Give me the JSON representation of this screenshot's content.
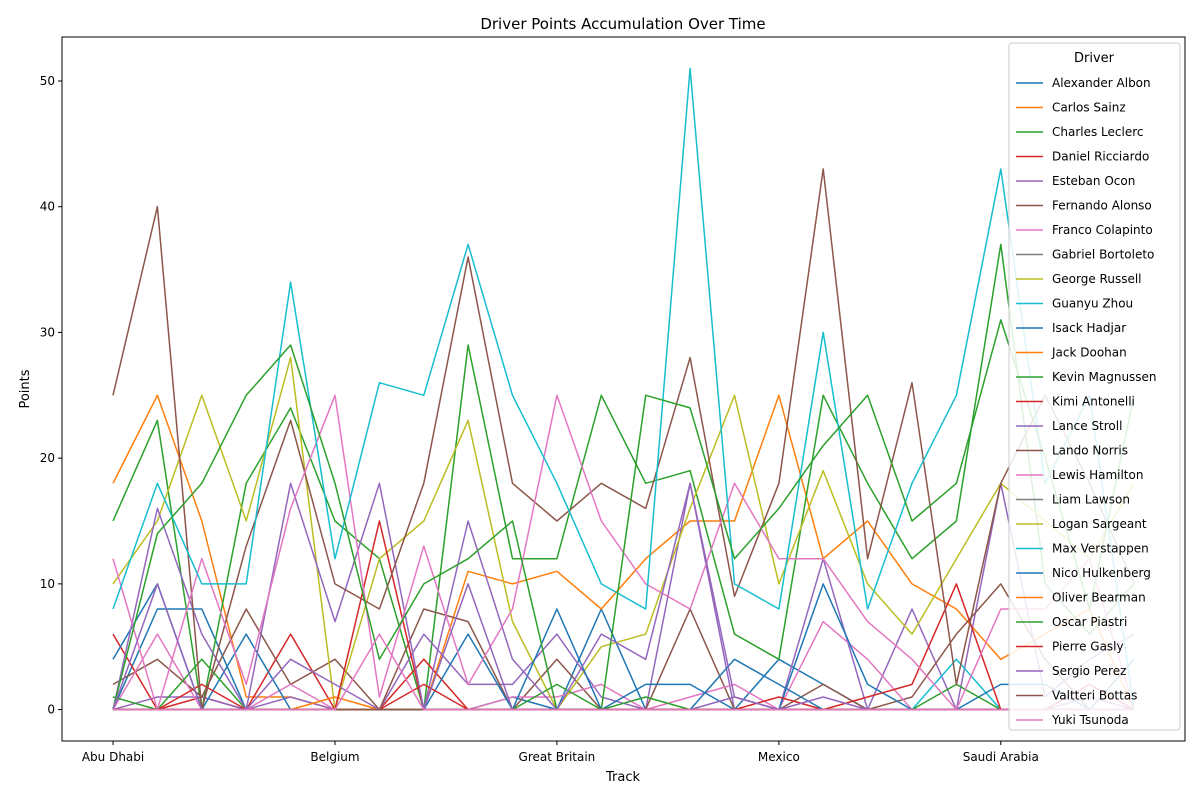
{
  "chart_data": {
    "type": "line",
    "title": "Driver Points Accumulation Over Time",
    "xlabel": "Track",
    "ylabel": "Points",
    "x_tick_labels": [
      "Abu Dhabi",
      "Belgium",
      "Great Britain",
      "Mexico",
      "Saudi Arabia"
    ],
    "x_tick_positions": [
      0,
      5,
      10,
      15,
      20
    ],
    "x_count": 24,
    "ylim": [
      -2.5,
      53.5
    ],
    "xlim": [
      -1.15,
      24.15
    ],
    "y_ticks": [
      0,
      10,
      20,
      30,
      40,
      50
    ],
    "grid": false,
    "legend": {
      "title": "Driver",
      "placement": "upper right"
    },
    "series": [
      {
        "name": "Alexander Albon",
        "color": "#1f77b4",
        "values": [
          0,
          8,
          8,
          0,
          0,
          0,
          0,
          0,
          0,
          1,
          0,
          8,
          0,
          0,
          0,
          4,
          2,
          0,
          0,
          0,
          0,
          0,
          0,
          0
        ]
      },
      {
        "name": "Carlos Sainz",
        "color": "#ff7f0e",
        "values": [
          18,
          25,
          15,
          1,
          1,
          0,
          0,
          0,
          11,
          10,
          11,
          8,
          12,
          15,
          15,
          25,
          12,
          15,
          10,
          8,
          4,
          6,
          8,
          0
        ]
      },
      {
        "name": "Charles Leclerc",
        "color": "#2ca02c",
        "values": [
          15,
          23,
          0,
          18,
          24,
          15,
          12,
          0,
          29,
          12,
          12,
          25,
          18,
          19,
          6,
          4,
          25,
          18,
          12,
          15,
          37,
          10,
          6,
          10
        ]
      },
      {
        "name": "Daniel Ricciardo",
        "color": "#d62728",
        "values": [
          6,
          0,
          1,
          0,
          6,
          0,
          0,
          4,
          0,
          0,
          0,
          0,
          0,
          0,
          0,
          0,
          0,
          0,
          0,
          0,
          0,
          0,
          0,
          0
        ]
      },
      {
        "name": "Esteban Ocon",
        "color": "#9467bd",
        "values": [
          0,
          1,
          1,
          0,
          1,
          0,
          0,
          6,
          2,
          2,
          6,
          1,
          0,
          18,
          0,
          0,
          12,
          0,
          8,
          0,
          18,
          1,
          4,
          6
        ]
      },
      {
        "name": "Fernando Alonso",
        "color": "#8c564b",
        "values": [
          2,
          4,
          1,
          8,
          2,
          4,
          0,
          8,
          7,
          0,
          4,
          0,
          0,
          8,
          0,
          0,
          2,
          0,
          1,
          6,
          10,
          4,
          0,
          0
        ]
      },
      {
        "name": "Franco Colapinto",
        "color": "#e377c2",
        "values": [
          0,
          6,
          0,
          0,
          2,
          0,
          0,
          0,
          0,
          1,
          1,
          2,
          0,
          1,
          2,
          0,
          7,
          4,
          0,
          0,
          0,
          0,
          0,
          0
        ]
      },
      {
        "name": "Gabriel Bortoleto",
        "color": "#7f7f7f",
        "values": [
          0,
          0,
          0,
          0,
          0,
          0,
          0,
          0,
          0,
          0,
          0,
          0,
          0,
          0,
          0,
          0,
          0,
          0,
          0,
          0,
          0,
          0,
          0,
          0
        ]
      },
      {
        "name": "George Russell",
        "color": "#bcbd22",
        "values": [
          10,
          15,
          25,
          15,
          28,
          0,
          12,
          15,
          23,
          7,
          0,
          5,
          6,
          16,
          25,
          10,
          19,
          10,
          6,
          12,
          18,
          15,
          12,
          18
        ]
      },
      {
        "name": "Guanyu Zhou",
        "color": "#17becf",
        "values": [
          0,
          0,
          0,
          0,
          0,
          0,
          0,
          0,
          0,
          0,
          0,
          0,
          0,
          0,
          0,
          0,
          0,
          0,
          0,
          4,
          0,
          0,
          0,
          0
        ]
      },
      {
        "name": "Isack Hadjar",
        "color": "#1f77b4",
        "values": [
          4,
          10,
          0,
          6,
          0,
          0,
          0,
          0,
          6,
          0,
          8,
          0,
          2,
          2,
          0,
          0,
          10,
          2,
          0,
          0,
          2,
          2,
          0,
          4
        ]
      },
      {
        "name": "Jack Doohan",
        "color": "#ff7f0e",
        "values": [
          0,
          0,
          0,
          0,
          0,
          1,
          0,
          0,
          0,
          0,
          0,
          0,
          0,
          0,
          0,
          0,
          0,
          0,
          0,
          0,
          0,
          0,
          0,
          0
        ]
      },
      {
        "name": "Kevin Magnussen",
        "color": "#2ca02c",
        "values": [
          1,
          0,
          4,
          0,
          0,
          0,
          0,
          0,
          0,
          0,
          2,
          0,
          1,
          0,
          0,
          0,
          0,
          0,
          0,
          2,
          0,
          0,
          0,
          0
        ]
      },
      {
        "name": "Kimi Antonelli",
        "color": "#d62728",
        "values": [
          0,
          0,
          2,
          0,
          0,
          0,
          15,
          0,
          0,
          0,
          0,
          0,
          0,
          0,
          0,
          1,
          0,
          1,
          2,
          10,
          0,
          0,
          2,
          0
        ]
      },
      {
        "name": "Lance Stroll",
        "color": "#9467bd",
        "values": [
          0,
          16,
          6,
          0,
          18,
          7,
          18,
          0,
          15,
          4,
          0,
          0,
          0,
          0,
          1,
          0,
          0,
          0,
          0,
          0,
          0,
          0,
          1,
          0
        ]
      },
      {
        "name": "Lando Norris",
        "color": "#8c564b",
        "values": [
          25,
          40,
          0,
          13,
          23,
          10,
          8,
          18,
          36,
          18,
          15,
          18,
          16,
          28,
          9,
          18,
          43,
          12,
          26,
          2,
          18,
          25,
          18,
          10
        ]
      },
      {
        "name": "Lewis Hamilton",
        "color": "#e377c2",
        "values": [
          12,
          0,
          12,
          2,
          16,
          25,
          1,
          13,
          2,
          8,
          25,
          15,
          10,
          8,
          18,
          12,
          12,
          7,
          4,
          0,
          8,
          8,
          12,
          0
        ]
      },
      {
        "name": "Liam Lawson",
        "color": "#7f7f7f",
        "values": [
          0,
          0,
          0,
          0,
          0,
          0,
          0,
          0,
          0,
          0,
          0,
          0,
          0,
          0,
          0,
          0,
          0,
          0,
          0,
          0,
          0,
          0,
          0,
          0
        ]
      },
      {
        "name": "Logan Sargeant",
        "color": "#bcbd22",
        "values": [
          0,
          0,
          0,
          0,
          0,
          0,
          0,
          0,
          0,
          0,
          0,
          0,
          0,
          0,
          0,
          0,
          0,
          0,
          0,
          0,
          0,
          0,
          0,
          0
        ]
      },
      {
        "name": "Max Verstappen",
        "color": "#17becf",
        "values": [
          8,
          18,
          10,
          10,
          34,
          12,
          26,
          25,
          37,
          25,
          18,
          10,
          8,
          51,
          10,
          8,
          30,
          8,
          18,
          25,
          43,
          18,
          25,
          0
        ]
      },
      {
        "name": "Nico Hulkenberg",
        "color": "#1f77b4",
        "values": [
          0,
          0,
          0,
          0,
          0,
          0,
          0,
          0,
          0,
          0,
          0,
          0,
          0,
          0,
          4,
          2,
          0,
          0,
          0,
          0,
          0,
          0,
          0,
          0
        ]
      },
      {
        "name": "Oliver Bearman",
        "color": "#ff7f0e",
        "values": [
          0,
          0,
          0,
          0,
          0,
          0,
          0,
          0,
          0,
          0,
          0,
          0,
          0,
          0,
          0,
          0,
          0,
          0,
          0,
          0,
          0,
          0,
          0,
          0
        ]
      },
      {
        "name": "Oscar Piastri",
        "color": "#2ca02c",
        "values": [
          0,
          14,
          18,
          25,
          29,
          18,
          4,
          10,
          12,
          15,
          0,
          0,
          25,
          24,
          12,
          16,
          21,
          25,
          15,
          18,
          31,
          20,
          8,
          25
        ]
      },
      {
        "name": "Pierre Gasly",
        "color": "#d62728",
        "values": [
          0,
          0,
          0,
          0,
          0,
          0,
          0,
          2,
          0,
          0,
          0,
          0,
          0,
          0,
          0,
          0,
          0,
          0,
          0,
          0,
          0,
          0,
          0,
          0
        ]
      },
      {
        "name": "Sergio Perez",
        "color": "#9467bd",
        "values": [
          0,
          10,
          0,
          0,
          4,
          2,
          0,
          0,
          10,
          0,
          0,
          6,
          4,
          18,
          1,
          0,
          1,
          0,
          0,
          0,
          0,
          0,
          0,
          0
        ]
      },
      {
        "name": "Valtteri Bottas",
        "color": "#8c564b",
        "values": [
          0,
          0,
          0,
          0,
          0,
          0,
          0,
          0,
          0,
          0,
          0,
          0,
          0,
          0,
          0,
          0,
          0,
          0,
          0,
          0,
          0,
          0,
          0,
          0
        ]
      },
      {
        "name": "Yuki Tsunoda",
        "color": "#e377c2",
        "values": [
          0,
          0,
          0,
          0,
          0,
          0,
          6,
          0,
          0,
          0,
          0,
          0,
          0,
          0,
          0,
          0,
          0,
          0,
          0,
          0,
          0,
          0,
          0,
          0
        ]
      }
    ]
  }
}
